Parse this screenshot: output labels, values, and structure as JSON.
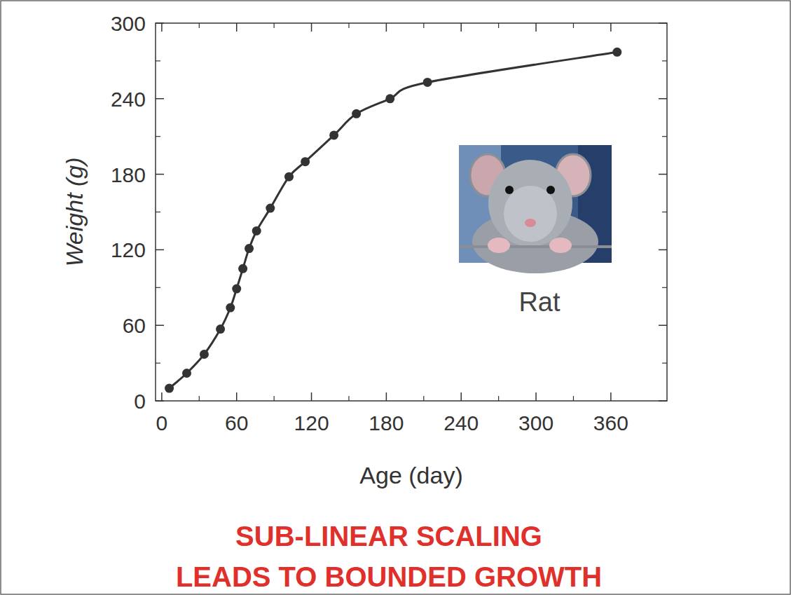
{
  "chart_data": {
    "type": "line",
    "x": [
      6,
      20,
      34,
      47,
      55,
      60,
      65,
      70,
      76,
      87,
      102,
      115,
      138,
      156,
      183,
      213,
      365
    ],
    "values": [
      10,
      22,
      37,
      57,
      74,
      89,
      105,
      121,
      135,
      153,
      178,
      190,
      211,
      228,
      240,
      253,
      277
    ],
    "color": "#333333",
    "marker": "circle",
    "grid": false,
    "xlim": [
      -5,
      405
    ],
    "xticks": [
      0,
      60,
      120,
      180,
      240,
      300,
      360
    ],
    "ylim": [
      0,
      300
    ],
    "yticks": [
      0,
      60,
      120,
      180,
      240,
      300
    ],
    "x_label": "Age (day)",
    "y_label": "Weight (g)",
    "annotation": "Rat",
    "caption": [
      "SUB-LINEAR SCALING",
      "LEADS TO BOUNDED GROWTH"
    ]
  }
}
